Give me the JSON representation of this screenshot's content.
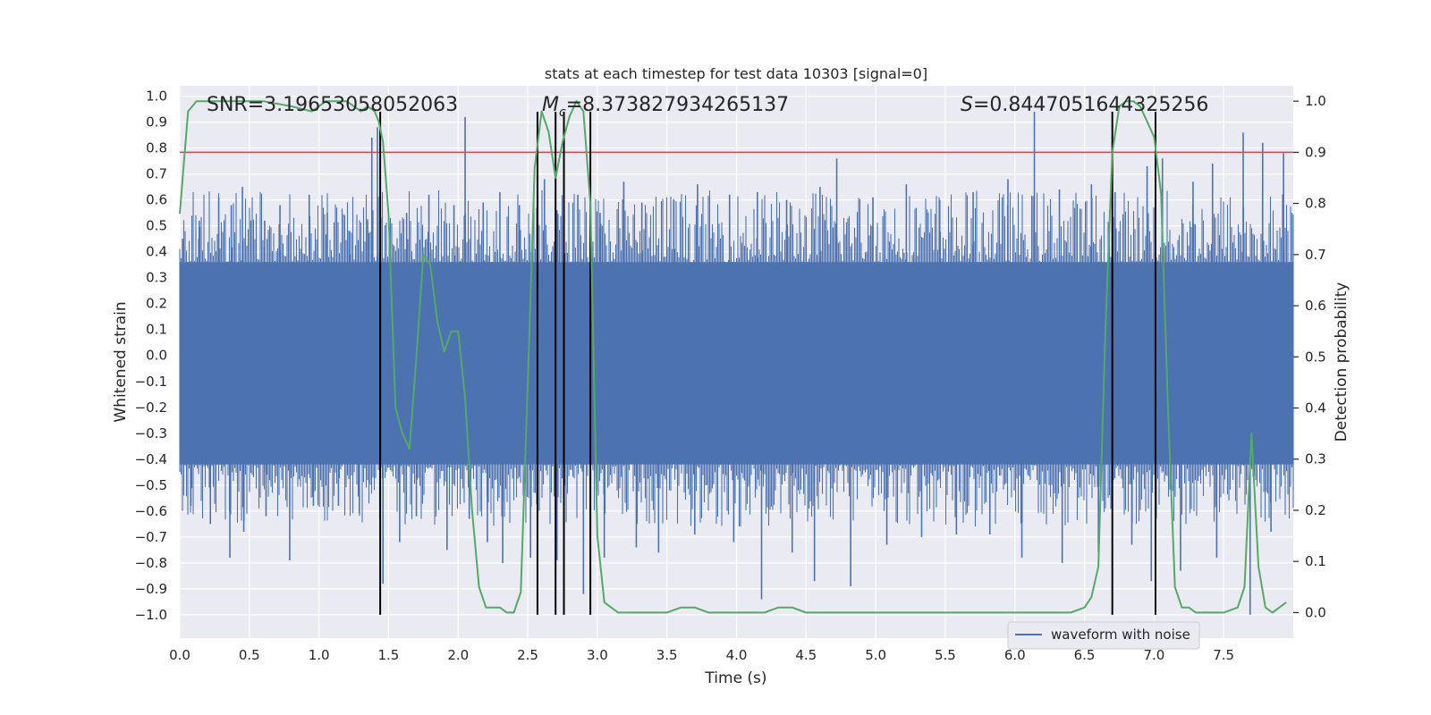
{
  "chart_data": {
    "type": "line",
    "title": "stats at each timestep for test data 10303 [signal=0]",
    "xlabel": "Time (s)",
    "ylabel_left": "Whitened strain",
    "ylabel_right": "Detection probability",
    "xlim": [
      0,
      8
    ],
    "ylim_left": [
      -1.09,
      1.04
    ],
    "ylim_right": [
      -0.05,
      1.03
    ],
    "x_ticks": [
      "0.0",
      "0.5",
      "1.0",
      "1.5",
      "2.0",
      "2.5",
      "3.0",
      "3.5",
      "4.0",
      "4.5",
      "5.0",
      "5.5",
      "6.0",
      "6.5",
      "7.0",
      "7.5"
    ],
    "y_left_ticks": [
      "1.0",
      "0.9",
      "0.8",
      "0.7",
      "0.6",
      "0.5",
      "0.4",
      "0.3",
      "0.2",
      "0.1",
      "0.0",
      "-0.1",
      "-0.2",
      "-0.3",
      "-0.4",
      "-0.5",
      "-0.6",
      "-0.7",
      "-0.8",
      "-0.9",
      "-1.0"
    ],
    "y_right_ticks": [
      "1.0",
      "0.9",
      "0.8",
      "0.7",
      "0.6",
      "0.5",
      "0.4",
      "0.3",
      "0.2",
      "0.1",
      "0.0"
    ],
    "grid": true,
    "legend_placement": "lower-right",
    "annotations": {
      "snr": "SNR=3.19653058052063",
      "mc_symbol": "M",
      "mc_sub": "c",
      "mc_value": "=8.373827934265137",
      "s_symbol": "S",
      "s_value": "=0.8447051644325256"
    },
    "threshold": {
      "value": 0.9,
      "axis": "right",
      "color": "#c44e52"
    },
    "vertical_markers": [
      1.44,
      2.57,
      2.7,
      2.76,
      2.95,
      6.7,
      7.01
    ],
    "vertical_markers_range_left": [
      -1.0,
      0.94
    ],
    "series": [
      {
        "name": "waveform with noise",
        "color": "#4c72b0",
        "axis": "left",
        "band_lower": -0.42,
        "band_upper": 0.36,
        "positive_peaks": [
          [
            0.02,
            0.45
          ],
          [
            0.14,
            0.52
          ],
          [
            0.28,
            0.61
          ],
          [
            0.37,
            0.58
          ],
          [
            0.45,
            0.65
          ],
          [
            0.61,
            0.52
          ],
          [
            0.72,
            0.58
          ],
          [
            0.93,
            0.62
          ],
          [
            1.06,
            0.55
          ],
          [
            1.22,
            0.48
          ],
          [
            1.35,
            0.52
          ],
          [
            1.38,
            0.84
          ],
          [
            1.42,
            0.88
          ],
          [
            1.63,
            0.55
          ],
          [
            1.79,
            0.62
          ],
          [
            1.97,
            0.58
          ],
          [
            2.05,
            0.92
          ],
          [
            2.18,
            0.59
          ],
          [
            2.3,
            0.63
          ],
          [
            2.44,
            0.58
          ],
          [
            2.62,
            0.68
          ],
          [
            2.71,
            0.56
          ],
          [
            2.86,
            0.62
          ],
          [
            3.02,
            0.55
          ],
          [
            3.19,
            0.67
          ],
          [
            3.32,
            0.59
          ],
          [
            3.55,
            0.6
          ],
          [
            3.72,
            0.66
          ],
          [
            3.95,
            0.62
          ],
          [
            4.15,
            0.63
          ],
          [
            4.36,
            0.6
          ],
          [
            4.6,
            0.65
          ],
          [
            4.72,
            0.76
          ],
          [
            4.98,
            0.61
          ],
          [
            5.22,
            0.66
          ],
          [
            5.46,
            0.6
          ],
          [
            5.7,
            0.63
          ],
          [
            5.95,
            0.68
          ],
          [
            6.14,
            0.94
          ],
          [
            6.32,
            0.64
          ],
          [
            6.55,
            0.66
          ],
          [
            6.72,
            0.63
          ],
          [
            6.95,
            0.73
          ],
          [
            7.06,
            0.76
          ],
          [
            7.28,
            0.67
          ],
          [
            7.42,
            0.74
          ],
          [
            7.64,
            0.86
          ],
          [
            7.78,
            0.82
          ],
          [
            7.93,
            0.78
          ]
        ],
        "negative_peaks": [
          [
            0.08,
            -0.58
          ],
          [
            0.22,
            -0.65
          ],
          [
            0.36,
            -0.78
          ],
          [
            0.46,
            -0.68
          ],
          [
            0.62,
            -0.62
          ],
          [
            0.79,
            -0.79
          ],
          [
            0.96,
            -0.58
          ],
          [
            1.14,
            -0.58
          ],
          [
            1.29,
            -0.61
          ],
          [
            1.46,
            -0.88
          ],
          [
            1.58,
            -0.72
          ],
          [
            1.7,
            -0.62
          ],
          [
            1.92,
            -0.75
          ],
          [
            2.08,
            -0.63
          ],
          [
            2.21,
            -0.72
          ],
          [
            2.32,
            -0.8
          ],
          [
            2.52,
            -0.78
          ],
          [
            2.71,
            -0.79
          ],
          [
            2.9,
            -0.92
          ],
          [
            3.05,
            -0.78
          ],
          [
            3.28,
            -0.74
          ],
          [
            3.44,
            -0.76
          ],
          [
            3.7,
            -0.69
          ],
          [
            3.98,
            -0.72
          ],
          [
            4.18,
            -0.94
          ],
          [
            4.4,
            -0.76
          ],
          [
            4.56,
            -0.87
          ],
          [
            4.82,
            -0.89
          ],
          [
            5.08,
            -0.73
          ],
          [
            5.33,
            -0.7
          ],
          [
            5.58,
            -0.69
          ],
          [
            5.82,
            -0.69
          ],
          [
            6.05,
            -0.78
          ],
          [
            6.34,
            -0.8
          ],
          [
            6.6,
            -0.76
          ],
          [
            6.84,
            -0.73
          ],
          [
            6.98,
            -0.87
          ],
          [
            7.19,
            -0.83
          ],
          [
            7.45,
            -0.78
          ],
          [
            7.69,
            -1.0
          ],
          [
            7.84,
            -0.68
          ]
        ]
      },
      {
        "name": "",
        "color": "#55a868",
        "axis": "right",
        "x": [
          0.0,
          0.06,
          0.12,
          0.2,
          0.4,
          0.6,
          0.8,
          0.95,
          1.0,
          1.05,
          1.1,
          1.2,
          1.3,
          1.35,
          1.4,
          1.43,
          1.46,
          1.5,
          1.55,
          1.6,
          1.65,
          1.7,
          1.75,
          1.8,
          1.85,
          1.9,
          1.95,
          2.0,
          2.05,
          2.1,
          2.15,
          2.2,
          2.25,
          2.3,
          2.35,
          2.4,
          2.45,
          2.5,
          2.55,
          2.6,
          2.65,
          2.7,
          2.75,
          2.8,
          2.85,
          2.9,
          2.95,
          3.0,
          3.05,
          3.1,
          3.15,
          3.2,
          3.3,
          3.4,
          3.5,
          3.6,
          3.7,
          3.8,
          4.0,
          4.2,
          4.3,
          4.35,
          4.4,
          4.5,
          4.7,
          5.0,
          5.5,
          6.0,
          6.2,
          6.4,
          6.5,
          6.55,
          6.6,
          6.65,
          6.7,
          6.75,
          6.8,
          6.85,
          6.9,
          6.95,
          7.0,
          7.05,
          7.1,
          7.15,
          7.2,
          7.25,
          7.3,
          7.4,
          7.5,
          7.6,
          7.65,
          7.7,
          7.75,
          7.8,
          7.85,
          7.9,
          7.95
        ],
        "values": [
          0.78,
          0.98,
          1.0,
          1.0,
          1.0,
          1.0,
          0.99,
          0.98,
          0.99,
          1.0,
          1.0,
          1.0,
          0.98,
          0.99,
          0.98,
          0.96,
          0.92,
          0.78,
          0.4,
          0.35,
          0.32,
          0.5,
          0.7,
          0.68,
          0.57,
          0.51,
          0.55,
          0.55,
          0.42,
          0.2,
          0.05,
          0.01,
          0.01,
          0.01,
          0.0,
          0.0,
          0.04,
          0.45,
          0.87,
          0.98,
          0.94,
          0.85,
          0.92,
          0.97,
          1.0,
          0.98,
          0.8,
          0.15,
          0.02,
          0.01,
          0.0,
          0.0,
          0.0,
          0.0,
          0.0,
          0.01,
          0.01,
          0.0,
          0.0,
          0.0,
          0.01,
          0.01,
          0.01,
          0.0,
          0.0,
          0.0,
          0.0,
          0.0,
          0.0,
          0.0,
          0.01,
          0.03,
          0.09,
          0.55,
          0.9,
          0.99,
          1.0,
          1.0,
          0.99,
          0.96,
          0.93,
          0.82,
          0.4,
          0.05,
          0.01,
          0.01,
          0.0,
          0.0,
          0.0,
          0.01,
          0.05,
          0.35,
          0.09,
          0.01,
          0.0,
          0.01,
          0.02
        ]
      }
    ]
  }
}
